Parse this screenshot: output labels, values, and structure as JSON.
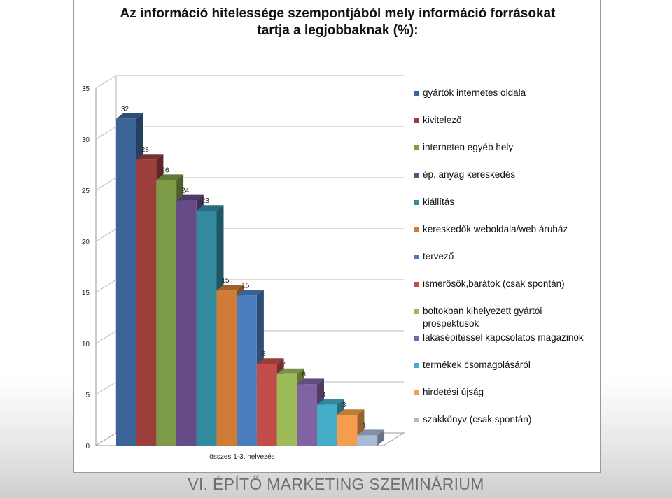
{
  "chart_data": {
    "type": "bar",
    "title": [
      "Az információ hitelessége szempontjából mely információ forrásokat",
      "tartja a legjobbaknak (%):"
    ],
    "xlabel": "összes 1-3. helyezés",
    "ylabel": "",
    "ylim": [
      0,
      35
    ],
    "yticks": [
      "0",
      "5",
      "10",
      "15",
      "20",
      "25",
      "30",
      "35"
    ],
    "grid": true,
    "legend_position": "right",
    "three_d": true,
    "series": [
      {
        "name": "gyártók internetes oldala",
        "value": 32,
        "label": "32",
        "color": "#3b6598"
      },
      {
        "name": "kivitelező",
        "value": 28,
        "label": "28",
        "color": "#9b3e3c"
      },
      {
        "name": "interneten egyéb hely",
        "value": 26,
        "label": "26",
        "color": "#7d9a46"
      },
      {
        "name": "ép. anyag kereskedés",
        "value": 24,
        "label": "24",
        "color": "#654b88"
      },
      {
        "name": "kiállítás",
        "value": 23,
        "label": "23",
        "color": "#338ba0"
      },
      {
        "name": "kereskedők weboldala/web áruház",
        "value": 15.2,
        "label": "15",
        "color": "#d07c36"
      },
      {
        "name": "tervező",
        "value": 14.7,
        "label": "15",
        "color": "#4a7ebf"
      },
      {
        "name": "ismerősök,barátok  (csak spontán)",
        "value": 8,
        "label": "8",
        "color": "#c24d4a"
      },
      {
        "name": "boltokban kihelyezett gyártói prospektusok",
        "value": 7,
        "label": "7",
        "color": "#9dbb59"
      },
      {
        "name": "lakásépítéssel kapcsolatos magazinok",
        "value": 6,
        "label": "6",
        "color": "#7f63a2"
      },
      {
        "name": "termékek csomagolásáról",
        "value": 4,
        "label": "4",
        "color": "#44adc7"
      },
      {
        "name": "hirdetési újság",
        "value": 3,
        "label": "3",
        "color": "#f59c4d"
      },
      {
        "name": "szakkönyv (csak spontán)",
        "value": 1,
        "label": "1",
        "color": "#a9b9d8"
      }
    ]
  },
  "footer": {
    "text": "VI. ÉPÍTŐ MARKETING SZEMINÁRIUM"
  }
}
